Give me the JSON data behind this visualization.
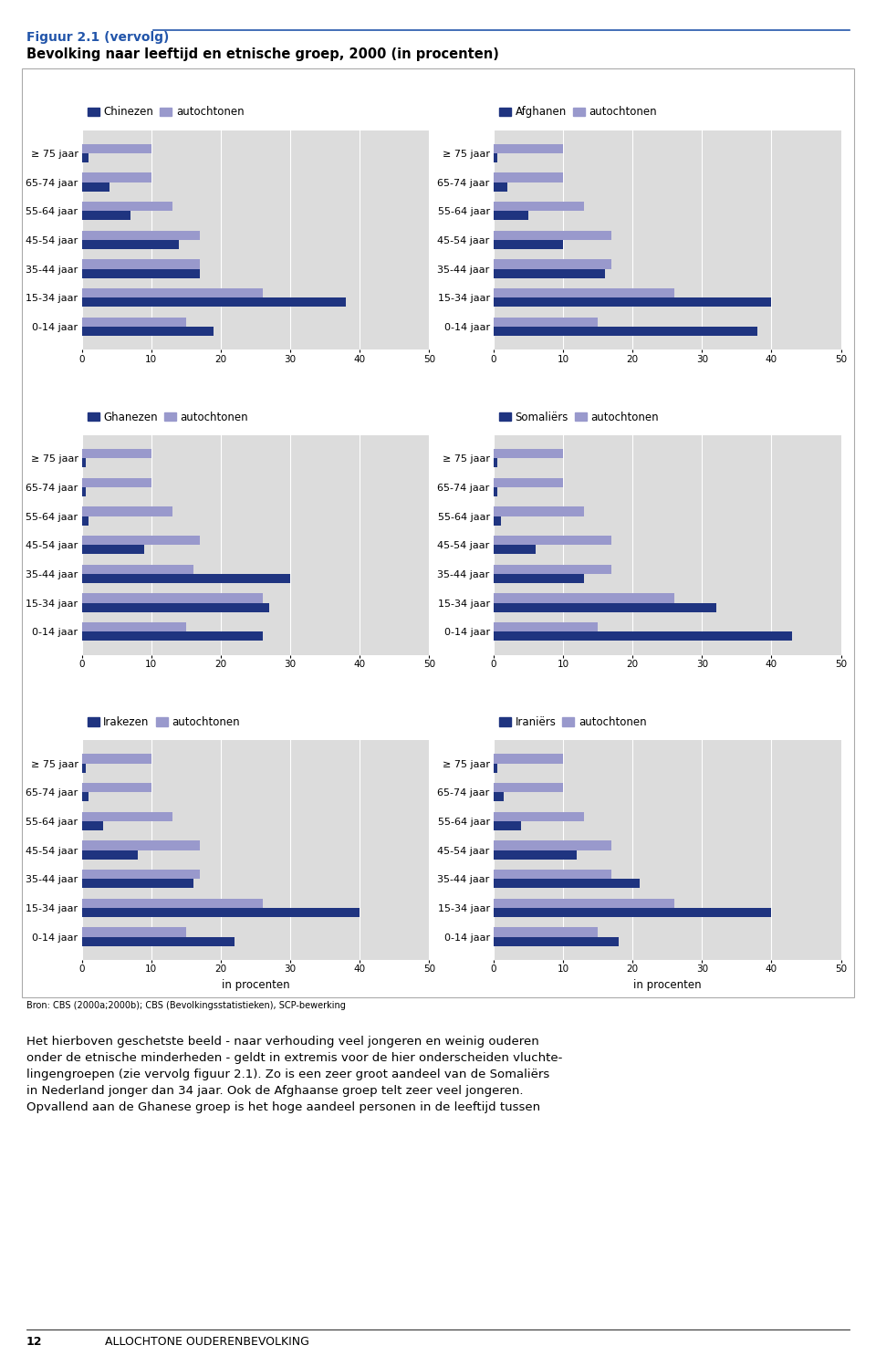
{
  "title_fig": "Figuur 2.1 (vervolg)",
  "title_main": "Bevolking naar leeftijd en etnische groep, 2000 (in procenten)",
  "age_labels": [
    "≥ 75 jaar",
    "65-74 jaar",
    "55-64 jaar",
    "45-54 jaar",
    "35-44 jaar",
    "15-34 jaar",
    "0-14 jaar"
  ],
  "xlabel": "in procenten",
  "xlim": [
    0,
    50
  ],
  "xticks": [
    0,
    10,
    20,
    30,
    40,
    50
  ],
  "color_ethnic": "#1F3480",
  "color_auto": "#9999CC",
  "color_bg": "#DCDCDC",
  "charts": [
    {
      "ethnic_label": "Chinezen",
      "auto_label": "autochtonen",
      "ethnic": [
        1,
        4,
        7,
        14,
        17,
        38,
        19
      ],
      "auto": [
        10,
        10,
        13,
        17,
        17,
        26,
        15
      ]
    },
    {
      "ethnic_label": "Afghanen",
      "auto_label": "autochtonen",
      "ethnic": [
        0.5,
        2,
        5,
        10,
        16,
        40,
        38
      ],
      "auto": [
        10,
        10,
        13,
        17,
        17,
        26,
        15
      ]
    },
    {
      "ethnic_label": "Ghanezen",
      "auto_label": "autochtonen",
      "ethnic": [
        0.5,
        0.5,
        1,
        9,
        30,
        27,
        26
      ],
      "auto": [
        10,
        10,
        13,
        17,
        16,
        26,
        15
      ]
    },
    {
      "ethnic_label": "Somaliërs",
      "auto_label": "autochtonen",
      "ethnic": [
        0.5,
        0.5,
        1,
        6,
        13,
        32,
        43
      ],
      "auto": [
        10,
        10,
        13,
        17,
        17,
        26,
        15
      ]
    },
    {
      "ethnic_label": "Irakezen",
      "auto_label": "autochtonen",
      "ethnic": [
        0.5,
        1,
        3,
        8,
        16,
        40,
        22
      ],
      "auto": [
        10,
        10,
        13,
        17,
        17,
        26,
        15
      ]
    },
    {
      "ethnic_label": "Iraniërs",
      "auto_label": "autochtonen",
      "ethnic": [
        0.5,
        1.5,
        4,
        12,
        21,
        40,
        18
      ],
      "auto": [
        10,
        10,
        13,
        17,
        17,
        26,
        15
      ]
    }
  ],
  "footer": "Bron: CBS (2000a;2000b); CBS (Bevolkingsstatistieken), SCP-bewerking",
  "body_text": "Het hierboven geschetste beeld - naar verhouding veel jongeren en weinig ouderen\nonder de etnische minderheden - geldt in extremis voor de hier onderscheiden vluchte-\nlingengroepen (zie vervolg figuur 2.1). Zo is een zeer groot aandeel van de Somaliërs\nin Nederland jonger dan 34 jaar. Ook de Afghaanse groep telt zeer veel jongeren.\nOpvallend aan de Ghanese groep is het hoge aandeel personen in de leeftijd tussen",
  "page_label": "12",
  "page_text": "ALLOCHTONE OUDERENBEVOLKING"
}
